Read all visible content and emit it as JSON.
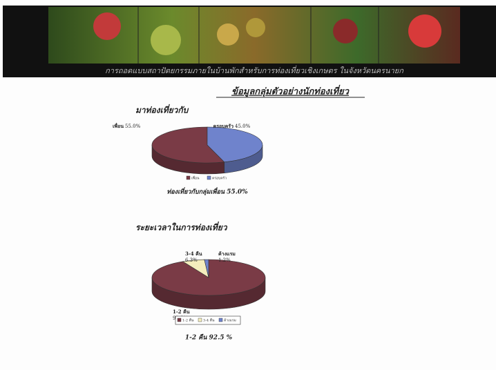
{
  "header": {
    "caption": "การถอดแบบสถาปัตยกรรมภายในบ้านพักสำหรับการท่องเที่ยวเชิงเกษตร ในจังหวัดนครนายก"
  },
  "page_title": "ข้อมูลกลุ่มตัวอย่างนักท่องเที่ยว",
  "chart_data": [
    {
      "type": "pie",
      "title": "มาท่องเที่ยวกับ",
      "categories": [
        "เพื่อน",
        "ครอบครัว"
      ],
      "values": [
        55,
        45
      ],
      "value_labels": [
        "55.0%",
        "45.0%"
      ],
      "colors": [
        "#7a3b46",
        "#6f83cc"
      ],
      "summary": "ท่องเที่ยวกับกลุ่มเพื่อน 55.0%"
    },
    {
      "type": "pie",
      "title": "ระยะเวลาในการท่องเที่ยว",
      "categories": [
        "1-2 คืน",
        "3-4 คืน",
        "ค้างแรม"
      ],
      "values": [
        92.5,
        6.3,
        1.2
      ],
      "value_labels": [
        "92.5%",
        "6.3%",
        "1.2%"
      ],
      "colors": [
        "#7a3b46",
        "#f4edbd",
        "#6f83cc"
      ],
      "summary": "1-2 คืน 92.5 %"
    }
  ]
}
